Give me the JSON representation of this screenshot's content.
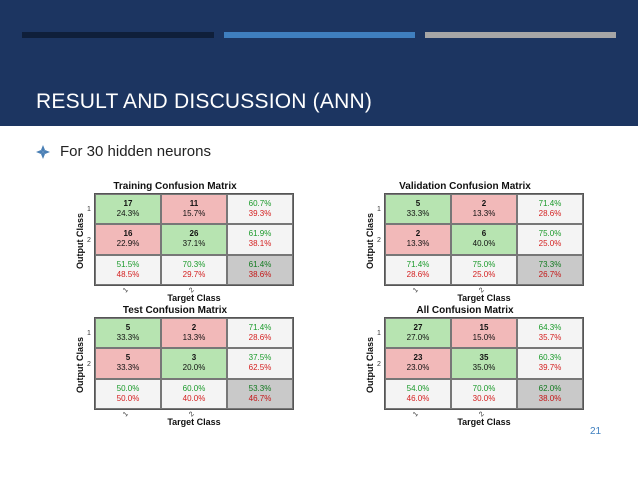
{
  "slide": {
    "title": "RESULT AND DISCUSSION (ANN)",
    "bullet": "For 30 hidden neurons",
    "page_number": "21"
  },
  "colors": {
    "header_bg": "#1c3561",
    "bar_dark": "#0f1f3a",
    "bar_blue": "#3f7fbf",
    "bar_gray": "#a6a6a6",
    "correct_cell": "#b7e4b1",
    "wrong_cell": "#f2b9b9"
  },
  "icons": {
    "bullet": "diamond-bullet-icon"
  },
  "matrices": [
    {
      "title": "Training Confusion Matrix",
      "ylabel": "Output Class",
      "xlabel": "Target Class",
      "ticks": [
        "1",
        "2"
      ],
      "cells": [
        [
          "17",
          "24.3%"
        ],
        [
          "11",
          "15.7%"
        ],
        [
          "60.7%",
          "39.3%"
        ],
        [
          "16",
          "22.9%"
        ],
        [
          "26",
          "37.1%"
        ],
        [
          "61.9%",
          "38.1%"
        ],
        [
          "51.5%",
          "48.5%"
        ],
        [
          "70.3%",
          "29.7%"
        ],
        [
          "61.4%",
          "38.6%"
        ]
      ]
    },
    {
      "title": "Validation Confusion Matrix",
      "ylabel": "Output Class",
      "xlabel": "Target Class",
      "ticks": [
        "1",
        "2"
      ],
      "cells": [
        [
          "5",
          "33.3%"
        ],
        [
          "2",
          "13.3%"
        ],
        [
          "71.4%",
          "28.6%"
        ],
        [
          "2",
          "13.3%"
        ],
        [
          "6",
          "40.0%"
        ],
        [
          "75.0%",
          "25.0%"
        ],
        [
          "71.4%",
          "28.6%"
        ],
        [
          "75.0%",
          "25.0%"
        ],
        [
          "73.3%",
          "26.7%"
        ]
      ]
    },
    {
      "title": "Test Confusion Matrix",
      "ylabel": "Output Class",
      "xlabel": "Target Class",
      "ticks": [
        "1",
        "2"
      ],
      "cells": [
        [
          "5",
          "33.3%"
        ],
        [
          "2",
          "13.3%"
        ],
        [
          "71.4%",
          "28.6%"
        ],
        [
          "5",
          "33.3%"
        ],
        [
          "3",
          "20.0%"
        ],
        [
          "37.5%",
          "62.5%"
        ],
        [
          "50.0%",
          "50.0%"
        ],
        [
          "60.0%",
          "40.0%"
        ],
        [
          "53.3%",
          "46.7%"
        ]
      ]
    },
    {
      "title": "All Confusion Matrix",
      "ylabel": "Output Class",
      "xlabel": "Target Class",
      "ticks": [
        "1",
        "2"
      ],
      "cells": [
        [
          "27",
          "27.0%"
        ],
        [
          "15",
          "15.0%"
        ],
        [
          "64.3%",
          "35.7%"
        ],
        [
          "23",
          "23.0%"
        ],
        [
          "35",
          "35.0%"
        ],
        [
          "60.3%",
          "39.7%"
        ],
        [
          "54.0%",
          "46.0%"
        ],
        [
          "70.0%",
          "30.0%"
        ],
        [
          "62.0%",
          "38.0%"
        ]
      ]
    }
  ]
}
